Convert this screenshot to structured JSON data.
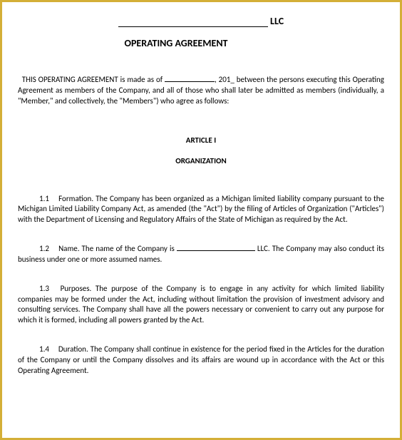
{
  "header": {
    "llc_suffix": "LLC",
    "title": "OPERATING AGREEMENT"
  },
  "intro": {
    "text_before": "THIS OPERATING AGREEMENT is made as of ",
    "text_after": ", 201_ between the persons executing this Operating Agreement as members of the Company, and all of those who shall later be admitted as members (individually, a \"Member,\" and collectively, the \"Members\") who agree as follows:"
  },
  "article": {
    "label": "ARTICLE I",
    "subtitle": "ORGANIZATION"
  },
  "sections": {
    "s1": {
      "num": "1.1",
      "text": "Formation. The Company has been organized as a Michigan limited liability company pursuant to the Michigan Limited Liability Company Act, as amended (the \"Act\") by the filing of Articles of Organization (\"Articles\") with the Department of Licensing and Regulatory Affairs of the State of Michigan as required by the Act."
    },
    "s2": {
      "num": "1.2",
      "text_before": "Name. The name of the Company is ",
      "text_after": " LLC.  The Company may also conduct its business under one or more assumed names."
    },
    "s3": {
      "num": "1.3",
      "text": "Purposes. The purpose of the Company is to engage in any activity for which limited liability companies may be formed under the Act, including without limitation the provision of investment advisory and consulting services.  The Company shall have all the powers necessary or convenient to carry out any purpose for which it is formed, including all powers granted by the Act."
    },
    "s4": {
      "num": "1.4",
      "text": "Duration. The Company shall continue in existence for the period fixed in the Articles for the duration of the Company or until the Company dissolves and its affairs are wound up in accordance with the Act or this Operating Agreement."
    }
  },
  "style": {
    "border_color": "#d4af37",
    "background_color": "#ffffff",
    "text_color": "#000000",
    "body_fontsize": 11,
    "title_fontsize": 14,
    "font_family": "Calibri, Arial, sans-serif"
  }
}
